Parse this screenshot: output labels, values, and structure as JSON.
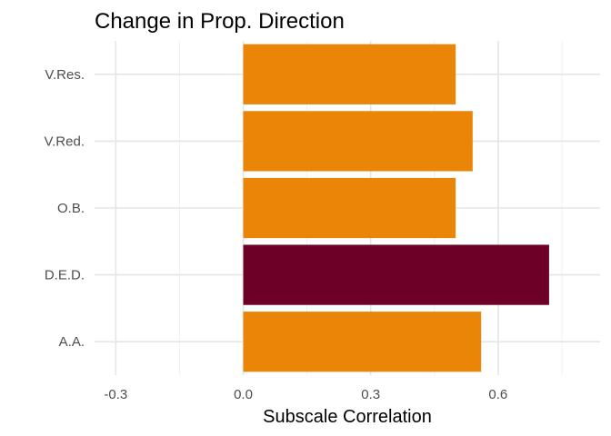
{
  "chart_data": {
    "type": "bar",
    "orientation": "horizontal",
    "title": "Change in Prop. Direction",
    "xlabel": "Subscale Correlation",
    "ylabel": "",
    "categories": [
      "A.A.",
      "D.E.D.",
      "O.B.",
      "V.Red.",
      "V.Res."
    ],
    "values": [
      0.56,
      0.72,
      0.5,
      0.54,
      0.5
    ],
    "highlight": [
      false,
      true,
      false,
      false,
      false
    ],
    "colors": {
      "default": "#EA8508",
      "highlight": "#6D0026"
    },
    "xlim": [
      -0.35,
      0.84
    ],
    "xticks": [
      -0.3,
      0.0,
      0.3,
      0.6
    ],
    "xtick_labels": [
      "-0.3",
      "0.0",
      "0.3",
      "0.6"
    ],
    "grid": true,
    "legend": "none"
  }
}
